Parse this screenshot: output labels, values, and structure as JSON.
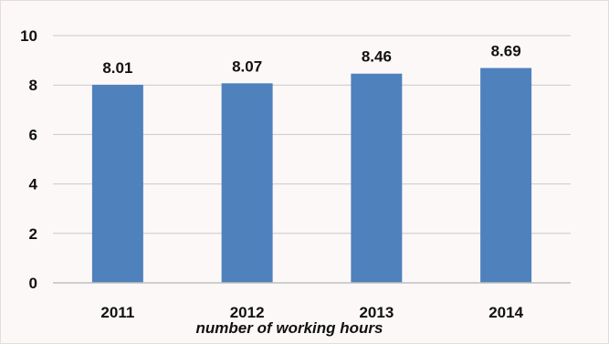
{
  "chart_data": {
    "type": "bar",
    "categories": [
      "2011",
      "2012",
      "2013",
      "2014"
    ],
    "values": [
      8.01,
      8.07,
      8.46,
      8.69
    ],
    "data_labels": [
      "8.01",
      "8.07",
      "8.46",
      "8.69"
    ],
    "xlabel": "number of working hours",
    "ylabel": "",
    "ylim": [
      0,
      10
    ],
    "yticks": [
      "0",
      "2",
      "4",
      "6",
      "8",
      "10"
    ],
    "grid": true,
    "legend": "none",
    "bar_color": "#4f81bd",
    "grid_color": "#c8c8c8"
  }
}
